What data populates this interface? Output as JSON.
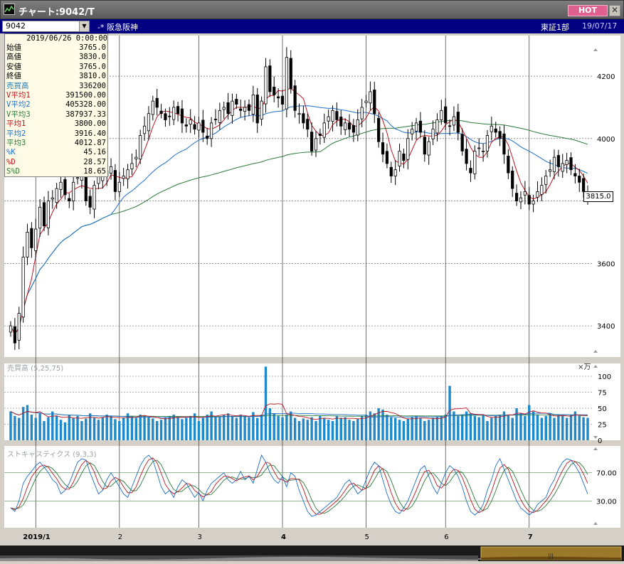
{
  "window": {
    "title": "チャート:9042/T",
    "hot_label": "HOT",
    "close_label": "✕"
  },
  "toolbar": {
    "code": "9042",
    "dropdown_label": "▼",
    "stock_name": "-* 阪急阪神",
    "exchange": "東証1部",
    "date": "19/07/17"
  },
  "info": {
    "datetime": "2019/06/26 0:00:00",
    "rows": [
      {
        "label": "始値",
        "value": "3765.0",
        "color": "#000000"
      },
      {
        "label": "高値",
        "value": "3830.0",
        "color": "#000000"
      },
      {
        "label": "安値",
        "value": "3765.0",
        "color": "#000000"
      },
      {
        "label": "終値",
        "value": "3810.0",
        "color": "#000000"
      },
      {
        "label": "売買高",
        "value": "336200",
        "color": "#1e7ab8"
      },
      {
        "label": "V平均1",
        "value": "391500.00",
        "color": "#c0141e"
      },
      {
        "label": "V平均2",
        "value": "405328.00",
        "color": "#1e6ec8"
      },
      {
        "label": "V平均3",
        "value": "387937.33",
        "color": "#2a7a3a"
      },
      {
        "label": "平均1",
        "value": "3800.00",
        "color": "#c0141e"
      },
      {
        "label": "平均2",
        "value": "3916.40",
        "color": "#1e6ec8"
      },
      {
        "label": "平均3",
        "value": "4012.87",
        "color": "#2a7a3a"
      },
      {
        "label": "%K",
        "value": "45.16",
        "color": "#1e6ec8"
      },
      {
        "label": "%D",
        "value": "28.57",
        "color": "#c0141e"
      },
      {
        "label": "S%D",
        "value": "18.65",
        "color": "#2a7a3a"
      }
    ]
  },
  "panels": {
    "volume_label": "売買高 (5,25,75)",
    "volume_unit": "×万",
    "stoch_label": "ストキャスティクス (9,3,3)",
    "current_price": "3815.0"
  },
  "axes": {
    "price_ticks": [
      "4200",
      "4000",
      "3600",
      "3400"
    ],
    "volume_ticks": [
      "100",
      "75",
      "50",
      "25",
      "0"
    ],
    "stoch_ticks": [
      "70.00",
      "30.00"
    ],
    "months": [
      "2019/1",
      "2",
      "3",
      "4",
      "5",
      "6",
      "7"
    ]
  },
  "colors": {
    "bg": "#ffffff",
    "candle": "#000000",
    "ma1": "#c0141e",
    "ma2": "#1e6ec8",
    "ma3": "#2a7a3a",
    "volume": "#1e88c8",
    "window_title": "#6c6c6c",
    "toolbar": "#000080"
  },
  "chart_data": {
    "type": "candlestick",
    "ylim": [
      3300,
      4330
    ],
    "candles_close": [
      3400,
      3345,
      3440,
      3620,
      3700,
      3650,
      3710,
      3780,
      3720,
      3800,
      3810,
      3840,
      3860,
      3820,
      3800,
      3860,
      3875,
      3890,
      3800,
      3780,
      3850,
      3880,
      3900,
      3880,
      3910,
      3830,
      3860,
      3880,
      3900,
      3920,
      3940,
      4010,
      4040,
      4080,
      4120,
      4100,
      4080,
      4060,
      4070,
      4100,
      4080,
      4050,
      4040,
      4060,
      4030,
      4050,
      4020,
      4000,
      4050,
      4060,
      4090,
      4100,
      4080,
      4120,
      4110,
      4090,
      4100,
      4090,
      4140,
      4050,
      4120,
      4230,
      4150,
      4140,
      4130,
      4110,
      4260,
      4160,
      4090,
      4080,
      4050,
      4030,
      3960,
      4000,
      4010,
      4050,
      4070,
      4090,
      4060,
      4040,
      4050,
      4030,
      4020,
      4060,
      4100,
      4120,
      4150,
      4080,
      3990,
      3950,
      3920,
      3880,
      3900,
      3960,
      3930,
      4000,
      4030,
      4050,
      4020,
      3950,
      3990,
      4030,
      4060,
      4090,
      4050,
      4040,
      4070,
      4020,
      3960,
      3920,
      3890,
      3960,
      3970,
      3960,
      4010,
      4040,
      4020,
      4000,
      3950,
      3890,
      3840,
      3800,
      3810,
      3830,
      3790,
      3800,
      3830,
      3850,
      3880,
      3900,
      3940,
      3910,
      3920,
      3930,
      3900,
      3880,
      3860,
      3830,
      3815
    ],
    "ma1_label": "平均1",
    "ma2_label": "平均2",
    "ma3_label": "平均3",
    "volume_values": [
      45,
      38,
      35,
      52,
      55,
      40,
      35,
      42,
      30,
      36,
      45,
      38,
      32,
      28,
      40,
      35,
      38,
      30,
      34,
      42,
      35,
      32,
      36,
      40,
      38,
      33,
      30,
      35,
      42,
      38,
      35,
      40,
      38,
      36,
      34,
      30,
      32,
      35,
      38,
      40,
      36,
      33,
      35,
      38,
      42,
      30,
      35,
      40,
      45,
      38,
      36,
      40,
      42,
      38,
      35,
      40,
      38,
      36,
      44,
      35,
      40,
      115,
      50,
      42,
      38,
      36,
      40,
      45,
      35,
      30,
      34,
      32,
      36,
      30,
      38,
      35,
      32,
      30,
      38,
      35,
      36,
      32,
      30,
      34,
      38,
      40,
      45,
      42,
      50,
      48,
      40,
      36,
      35,
      32,
      30,
      34,
      36,
      38,
      35,
      30,
      32,
      35,
      36,
      38,
      40,
      85,
      45,
      38,
      40,
      45,
      42,
      38,
      36,
      40,
      30,
      35,
      38,
      40,
      45,
      40,
      35,
      50,
      42,
      38,
      55,
      45,
      40,
      35,
      38,
      42,
      35,
      40,
      38,
      35,
      40,
      45,
      38,
      36,
      35,
      38,
      34,
      30,
      38,
      32,
      48,
      40,
      35
    ],
    "stoch_k": [
      20,
      15,
      30,
      55,
      65,
      72,
      80,
      85,
      78,
      70,
      60,
      55,
      40,
      45,
      55,
      70,
      85,
      90,
      88,
      70,
      55,
      40,
      45,
      60,
      70,
      60,
      50,
      40,
      35,
      50,
      65,
      80,
      90,
      95,
      88,
      70,
      50,
      40,
      45,
      35,
      50,
      60,
      55,
      45,
      35,
      42,
      30,
      45,
      55,
      60,
      65,
      70,
      60,
      55,
      60,
      72,
      60,
      65,
      55,
      75,
      95,
      85,
      70,
      60,
      55,
      65,
      50,
      70,
      65,
      45,
      30,
      15,
      8,
      10,
      15,
      20,
      25,
      30,
      35,
      45,
      55,
      60,
      50,
      40,
      45,
      60,
      75,
      85,
      80,
      60,
      40,
      25,
      15,
      12,
      20,
      30,
      45,
      60,
      75,
      80,
      65,
      50,
      40,
      55,
      70,
      80,
      75,
      65,
      50,
      30,
      15,
      10,
      15,
      25,
      45,
      60,
      80,
      90,
      75,
      60,
      45,
      30,
      20,
      15,
      10,
      15,
      25,
      30,
      35,
      50,
      60,
      75,
      85,
      90,
      88,
      80,
      70,
      55,
      40,
      30,
      22,
      20
    ]
  }
}
